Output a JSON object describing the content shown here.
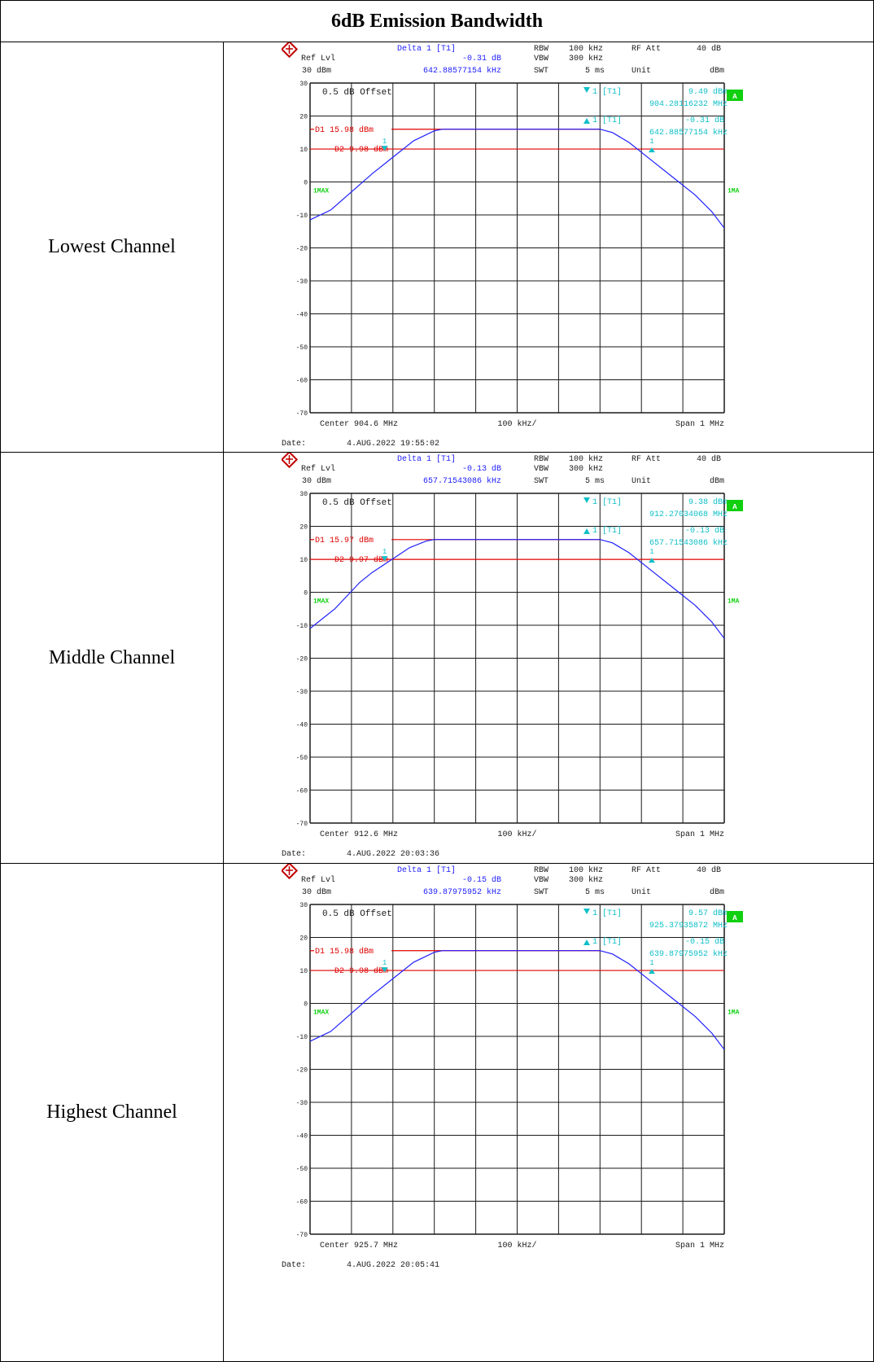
{
  "table": {
    "title": "6dB Emission Bandwidth"
  },
  "chart_data": [
    {
      "type": "line",
      "row_label": "Lowest Channel",
      "header": {
        "ref_lvl_label": "Ref Lvl",
        "ref_lvl_value": "30 dBm",
        "delta_title": "Delta 1 [T1]",
        "delta_db": "-0.31 dB",
        "delta_freq": "642.88577154 kHz",
        "rbw_label": "RBW",
        "rbw": "100 kHz",
        "vbw_label": "VBW",
        "vbw": "300 kHz",
        "swt_label": "SWT",
        "swt": "5 ms",
        "rf_att_label": "RF Att",
        "rf_att": "40 dB",
        "unit_label": "Unit",
        "unit": "dBm"
      },
      "offset_text": "0.5 dB Offset",
      "marker1": {
        "label": "1 [T1]",
        "level": "9.49 dBm",
        "freq": "904.28116232 MHz"
      },
      "delta_marker": {
        "label": "1 [T1]",
        "db": "-0.31 dB",
        "freq": "642.88577154 kHz"
      },
      "d1_label": "D1 15.98 dBm",
      "d1_level": 15.98,
      "d2_label": "D2 9.98 dBm",
      "d2_level": 9.98,
      "trace_label": "1MAX",
      "trace_label_right": "1MA",
      "a_badge": "A",
      "footer": {
        "center": "Center 904.6 MHz",
        "div": "100 kHz/",
        "span": "Span 1 MHz"
      },
      "date_label": "Date:",
      "date": "4.AUG.2022  19:55:02",
      "yticks": [
        30,
        20,
        10,
        0,
        -10,
        -20,
        -30,
        -40,
        -50,
        -60,
        -70
      ],
      "ylim": [
        -70,
        30
      ],
      "xlim": [
        -500,
        500
      ],
      "x_unit": "kHz from center",
      "trace": [
        [
          -500,
          -11.5
        ],
        [
          -450,
          -8.5
        ],
        [
          -400,
          -3
        ],
        [
          -350,
          2.5
        ],
        [
          -300,
          7.5
        ],
        [
          -250,
          12.5
        ],
        [
          -200,
          15.5
        ],
        [
          -180,
          16
        ],
        [
          200,
          16
        ],
        [
          230,
          15
        ],
        [
          270,
          12
        ],
        [
          320,
          7
        ],
        [
          380,
          1
        ],
        [
          430,
          -4
        ],
        [
          470,
          -9
        ],
        [
          500,
          -14
        ]
      ]
    },
    {
      "type": "line",
      "row_label": "Middle Channel",
      "header": {
        "ref_lvl_label": "Ref Lvl",
        "ref_lvl_value": "30 dBm",
        "delta_title": "Delta 1 [T1]",
        "delta_db": "-0.13 dB",
        "delta_freq": "657.71543086 kHz",
        "rbw_label": "RBW",
        "rbw": "100 kHz",
        "vbw_label": "VBW",
        "vbw": "300 kHz",
        "swt_label": "SWT",
        "swt": "5 ms",
        "rf_att_label": "RF Att",
        "rf_att": "40 dB",
        "unit_label": "Unit",
        "unit": "dBm"
      },
      "offset_text": "0.5 dB Offset",
      "marker1": {
        "label": "1 [T1]",
        "level": "9.38 dBm",
        "freq": "912.27034068 MHz"
      },
      "delta_marker": {
        "label": "1 [T1]",
        "db": "-0.13 dB",
        "freq": "657.71543086 kHz"
      },
      "d1_label": "D1 15.97 dBm",
      "d1_level": 15.97,
      "d2_label": "D2 9.97 dBm",
      "d2_level": 9.97,
      "trace_label": "1MAX",
      "trace_label_right": "1MA",
      "a_badge": "A",
      "footer": {
        "center": "Center 912.6 MHz",
        "div": "100 kHz/",
        "span": "Span 1 MHz"
      },
      "date_label": "Date:",
      "date": "4.AUG.2022  20:03:36",
      "yticks": [
        30,
        20,
        10,
        0,
        -10,
        -20,
        -30,
        -40,
        -50,
        -60,
        -70
      ],
      "ylim": [
        -70,
        30
      ],
      "xlim": [
        -500,
        500
      ],
      "x_unit": "kHz from center",
      "trace": [
        [
          -500,
          -11
        ],
        [
          -470,
          -8
        ],
        [
          -440,
          -5
        ],
        [
          -410,
          -1
        ],
        [
          -380,
          3
        ],
        [
          -350,
          6
        ],
        [
          -320,
          8.5
        ],
        [
          -290,
          11
        ],
        [
          -260,
          13.5
        ],
        [
          -220,
          15.5
        ],
        [
          -200,
          16
        ],
        [
          200,
          16
        ],
        [
          230,
          15
        ],
        [
          270,
          12
        ],
        [
          320,
          7
        ],
        [
          380,
          1
        ],
        [
          430,
          -4
        ],
        [
          470,
          -9
        ],
        [
          500,
          -14
        ]
      ]
    },
    {
      "type": "line",
      "row_label": "Highest Channel",
      "header": {
        "ref_lvl_label": "Ref Lvl",
        "ref_lvl_value": "30 dBm",
        "delta_title": "Delta 1 [T1]",
        "delta_db": "-0.15 dB",
        "delta_freq": "639.87975952 kHz",
        "rbw_label": "RBW",
        "rbw": "100 kHz",
        "vbw_label": "VBW",
        "vbw": "300 kHz",
        "swt_label": "SWT",
        "swt": "5 ms",
        "rf_att_label": "RF Att",
        "rf_att": "40 dB",
        "unit_label": "Unit",
        "unit": "dBm"
      },
      "offset_text": "0.5 dB Offset",
      "marker1": {
        "label": "1 [T1]",
        "level": "9.57 dBm",
        "freq": "925.37935872 MHz"
      },
      "delta_marker": {
        "label": "1 [T1]",
        "db": "-0.15 dB",
        "freq": "639.87975952 kHz"
      },
      "d1_label": "D1 15.98 dBm",
      "d1_level": 15.98,
      "d2_label": "D2 9.98 dBm",
      "d2_level": 9.98,
      "trace_label": "1MAX",
      "trace_label_right": "1MA",
      "a_badge": "A",
      "footer": {
        "center": "Center 925.7 MHz",
        "div": "100 kHz/",
        "span": "Span 1 MHz"
      },
      "date_label": "Date:",
      "date": "4.AUG.2022  20:05:41",
      "yticks": [
        30,
        20,
        10,
        0,
        -10,
        -20,
        -30,
        -40,
        -50,
        -60,
        -70
      ],
      "ylim": [
        -70,
        30
      ],
      "xlim": [
        -500,
        500
      ],
      "x_unit": "kHz from center",
      "trace": [
        [
          -500,
          -11.5
        ],
        [
          -450,
          -8.5
        ],
        [
          -400,
          -3
        ],
        [
          -350,
          2.5
        ],
        [
          -300,
          7.5
        ],
        [
          -250,
          12.5
        ],
        [
          -200,
          15.5
        ],
        [
          -180,
          16
        ],
        [
          200,
          16
        ],
        [
          230,
          15
        ],
        [
          270,
          12
        ],
        [
          320,
          7
        ],
        [
          380,
          1
        ],
        [
          430,
          -4
        ],
        [
          470,
          -9
        ],
        [
          500,
          -14
        ]
      ]
    }
  ]
}
